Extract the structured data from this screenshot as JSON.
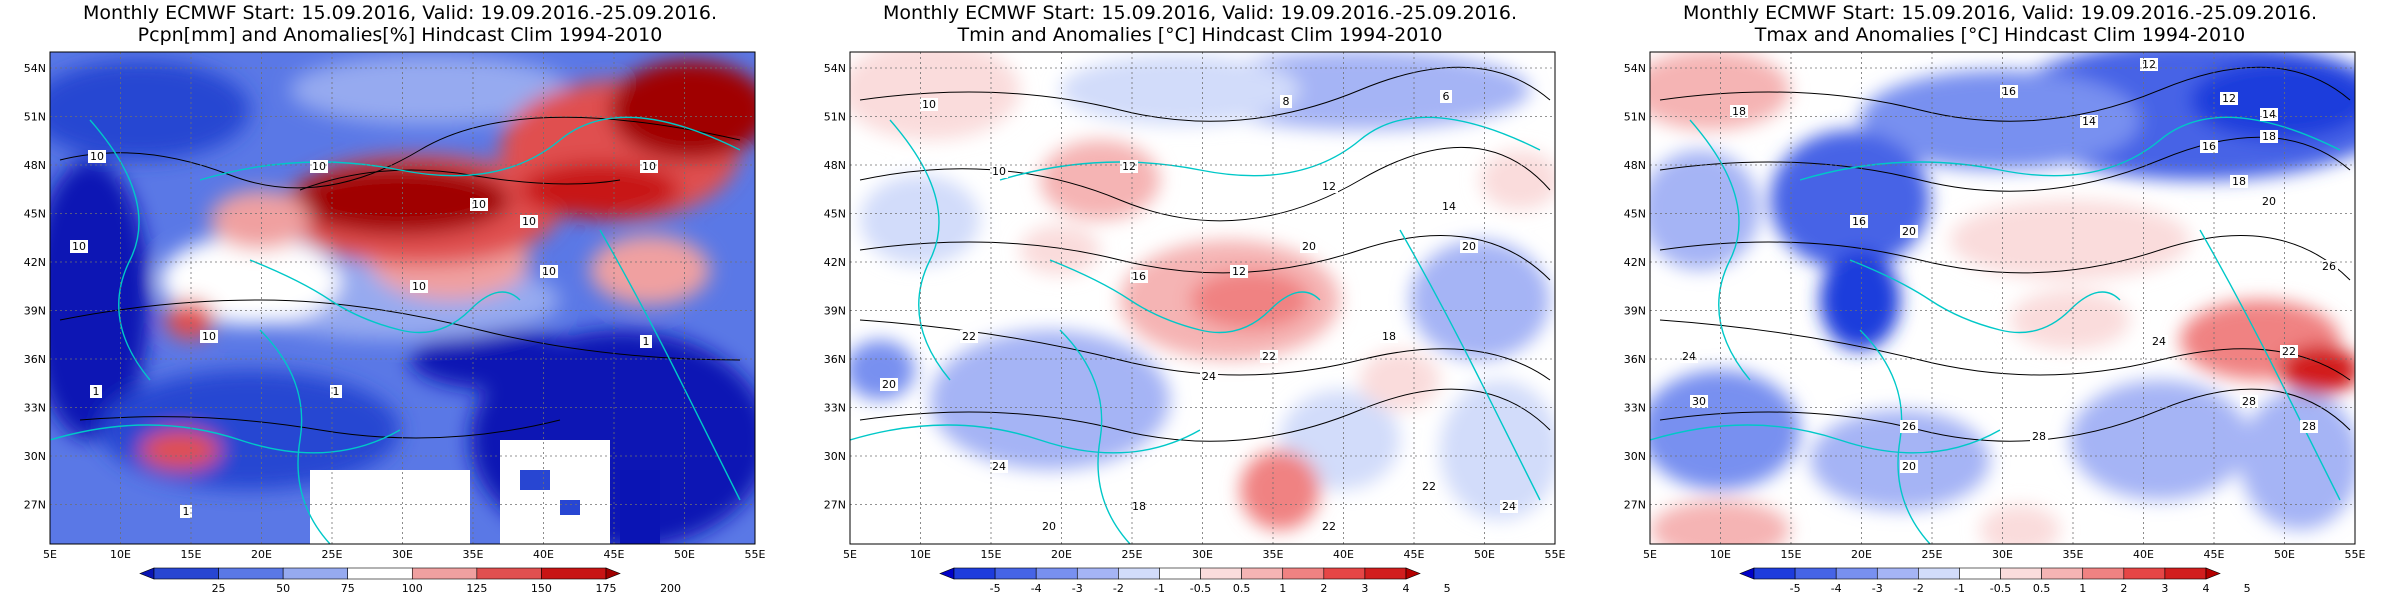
{
  "panels": [
    {
      "title_line1": "Monthly ECMWF Start: 15.09.2016, Valid: 19.09.2016.-25.09.2016.",
      "title_line2": "Pcpn[mm] and Anomalies[%] Hindcast Clim 1994-2010",
      "colorbar": {
        "labels": [
          "25",
          "50",
          "75",
          "100",
          "125",
          "150",
          "175",
          "200"
        ],
        "colors": [
          "#0a14b4",
          "#2846d2",
          "#5a78e6",
          "#96aaf0",
          "#ffffff",
          "#f0a0a0",
          "#e05050",
          "#c81414",
          "#a00000"
        ]
      },
      "contour_labels": [
        "10",
        "10",
        "10",
        "10",
        "10",
        "10",
        "10",
        "10",
        "10",
        "1",
        "1",
        "1",
        "1"
      ]
    },
    {
      "title_line1": "Monthly ECMWF Start: 15.09.2016, Valid: 19.09.2016.-25.09.2016.",
      "title_line2": "Tmin and Anomalies [°C] Hindcast Clim 1994-2010",
      "colorbar": {
        "labels": [
          "-5",
          "-4",
          "-3",
          "-2",
          "-1",
          "-0.5",
          "0.5",
          "1",
          "2",
          "3",
          "4",
          "5"
        ],
        "colors": [
          "#0000c8",
          "#1e3cdc",
          "#4664e6",
          "#7890f0",
          "#a5b4f5",
          "#d2dcfa",
          "#ffffff",
          "#fadcdc",
          "#f5b4b4",
          "#f08282",
          "#e64646",
          "#d21e1e",
          "#b40000"
        ]
      },
      "contour_labels": [
        "10",
        "8",
        "6",
        "10",
        "12",
        "12",
        "14",
        "16",
        "12",
        "20",
        "20",
        "22",
        "24",
        "22",
        "20",
        "24",
        "18",
        "20",
        "22",
        "18",
        "24",
        "22"
      ]
    },
    {
      "title_line1": "Monthly ECMWF Start: 15.09.2016, Valid: 19.09.2016.-25.09.2016.",
      "title_line2": "Tmax and Anomalies [°C] Hindcast Clim 1994-2010",
      "colorbar": {
        "labels": [
          "-5",
          "-4",
          "-3",
          "-2",
          "-1",
          "-0.5",
          "0.5",
          "1",
          "2",
          "3",
          "4",
          "5"
        ],
        "colors": [
          "#0000c8",
          "#1e3cdc",
          "#4664e6",
          "#7890f0",
          "#a5b4f5",
          "#d2dcfa",
          "#ffffff",
          "#fadcdc",
          "#f5b4b4",
          "#f08282",
          "#e64646",
          "#d21e1e",
          "#b40000"
        ]
      },
      "contour_labels": [
        "12",
        "16",
        "14",
        "12",
        "14",
        "18",
        "18",
        "18",
        "16",
        "20",
        "20",
        "16",
        "24",
        "26",
        "28",
        "30",
        "24",
        "28",
        "28",
        "20",
        "22",
        "26"
      ]
    }
  ],
  "axes": {
    "lat_labels": [
      "54N",
      "51N",
      "48N",
      "45N",
      "42N",
      "39N",
      "36N",
      "33N",
      "30N",
      "27N"
    ],
    "lon_labels": [
      "5E",
      "10E",
      "15E",
      "20E",
      "25E",
      "30E",
      "35E",
      "40E",
      "45E",
      "50E",
      "55E"
    ]
  }
}
